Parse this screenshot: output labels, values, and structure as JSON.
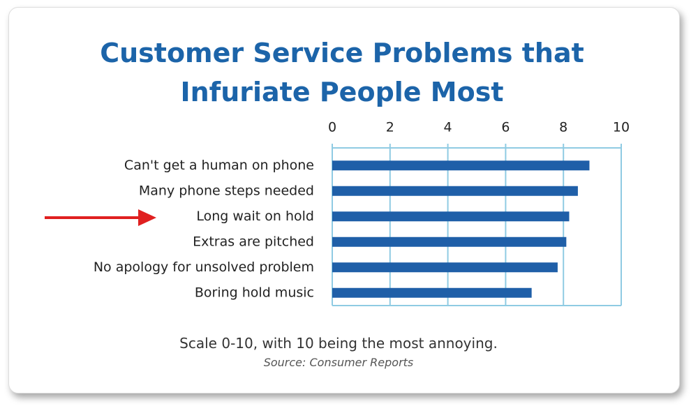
{
  "chart_data": {
    "type": "bar",
    "orientation": "horizontal",
    "title": "Customer Service Problems that Infuriate People Most",
    "note": "Scale 0-10, with 10 being the most annoying.",
    "source": "Source: Consumer Reports",
    "categories": [
      "Can't get a human on phone",
      "Many phone steps needed",
      "Long wait on hold",
      "Extras are pitched",
      "No apology for unsolved problem",
      "Boring hold music"
    ],
    "values": [
      8.9,
      8.5,
      8.2,
      8.1,
      7.8,
      6.9
    ],
    "color": "#1f5fa8",
    "xlim": [
      0,
      10
    ],
    "xticks": [
      0,
      2,
      4,
      6,
      8,
      10
    ],
    "grid": true
  }
}
